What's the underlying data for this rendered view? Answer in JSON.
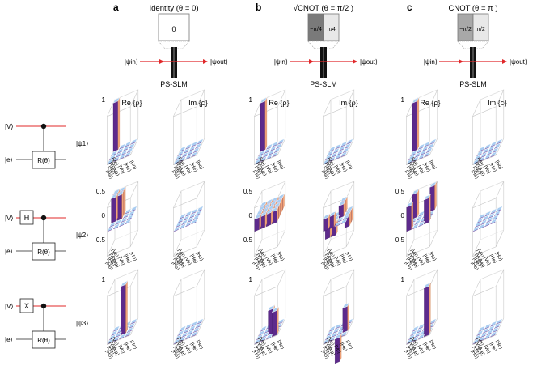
{
  "panels": [
    {
      "letter": "a",
      "title": "Identity (θ = 0)",
      "slm_values": [
        "0"
      ]
    },
    {
      "letter": "b",
      "title": "√CNOT (θ = π/2 )",
      "slm_values": [
        "−π/4",
        "π/4"
      ]
    },
    {
      "letter": "c",
      "title": "CNOT (θ = π )",
      "slm_values": [
        "−π/2",
        "π/2"
      ]
    }
  ],
  "psi_in": "|ψin⟩",
  "psi_out": "|ψout⟩",
  "slm_label": "PS-SLM",
  "plot_titles": {
    "re": "Re {ρ}",
    "im": "Im {ρ}"
  },
  "ticks": {
    "t1": "1",
    "t05": "0.5",
    "t0": "0",
    "tm05": "−0.5"
  },
  "basis": [
    "|Ve⟩",
    "|Vo⟩",
    "|He⟩",
    "|Ho⟩"
  ],
  "circuit": {
    "v_label": "|V⟩",
    "e_label": "|e⟩",
    "gate": "R(θ)",
    "pre_gates": [
      "",
      "H",
      "X"
    ],
    "outputs": [
      "|ψ1⟩",
      "|ψ2⟩",
      "|ψ3⟩"
    ]
  },
  "colors": {
    "top": "#a9cdf1",
    "front": "#5d2a8c",
    "side": "#f2a47a",
    "line": "#e0282a",
    "grid": "#c8c8c8"
  },
  "density_matrices": {
    "a1": {
      "re": [
        [
          1,
          0,
          0,
          0
        ],
        [
          0,
          0,
          0,
          0
        ],
        [
          0,
          0,
          0,
          0
        ],
        [
          0,
          0,
          0,
          0
        ]
      ],
      "im": [
        [
          0,
          0,
          0,
          0
        ],
        [
          0,
          0,
          0,
          0
        ],
        [
          0,
          0,
          0,
          0
        ],
        [
          0,
          0,
          0,
          0
        ]
      ]
    },
    "a2": {
      "re": [
        [
          0.5,
          0.5,
          0,
          0
        ],
        [
          0.5,
          0.5,
          0,
          0
        ],
        [
          0,
          0,
          0,
          0
        ],
        [
          0,
          0,
          0,
          0
        ]
      ],
      "im": [
        [
          0,
          0,
          0,
          0
        ],
        [
          0,
          0,
          0,
          0
        ],
        [
          0,
          0,
          0,
          0
        ],
        [
          0,
          0,
          0,
          0
        ]
      ]
    },
    "a3": {
      "re": [
        [
          0,
          0,
          0,
          0
        ],
        [
          0,
          0,
          0,
          0
        ],
        [
          0,
          0,
          1,
          0
        ],
        [
          0,
          0,
          0,
          0
        ]
      ],
      "im": [
        [
          0,
          0,
          0,
          0
        ],
        [
          0,
          0,
          0,
          0
        ],
        [
          0,
          0,
          0,
          0
        ],
        [
          0,
          0,
          0,
          0
        ]
      ]
    },
    "b1": {
      "re": [
        [
          1,
          0,
          0,
          0
        ],
        [
          0,
          0,
          0,
          0
        ],
        [
          0,
          0,
          0,
          0
        ],
        [
          0,
          0,
          0,
          0
        ]
      ],
      "im": [
        [
          0,
          0,
          0,
          0
        ],
        [
          0,
          0,
          0,
          0
        ],
        [
          0,
          0,
          0,
          0
        ],
        [
          0,
          0,
          0,
          0
        ]
      ]
    },
    "b2": {
      "re": [
        [
          0.25,
          0.25,
          0.25,
          0.25
        ],
        [
          0.25,
          0.25,
          0.25,
          0.25
        ],
        [
          0.25,
          0.25,
          0.25,
          0.25
        ],
        [
          0.25,
          0.25,
          0.25,
          0.25
        ]
      ],
      "im": [
        [
          0,
          0,
          0.25,
          -0.25
        ],
        [
          0,
          0,
          0.25,
          -0.25
        ],
        [
          -0.25,
          -0.25,
          0,
          0
        ],
        [
          0.25,
          0.25,
          0,
          0
        ]
      ]
    },
    "b3": {
      "re": [
        [
          0,
          0,
          0,
          0
        ],
        [
          0,
          0,
          0,
          0
        ],
        [
          0,
          0,
          0.5,
          0
        ],
        [
          0,
          0,
          0,
          0.5
        ]
      ],
      "im": [
        [
          0,
          0,
          0,
          0
        ],
        [
          0,
          0,
          0,
          0
        ],
        [
          0,
          0,
          0,
          0.5
        ],
        [
          0,
          0,
          -0.5,
          0
        ]
      ]
    },
    "c1": {
      "re": [
        [
          1,
          0,
          0,
          0
        ],
        [
          0,
          0,
          0,
          0
        ],
        [
          0,
          0,
          0,
          0
        ],
        [
          0,
          0,
          0,
          0
        ]
      ],
      "im": [
        [
          0,
          0,
          0,
          0
        ],
        [
          0,
          0,
          0,
          0
        ],
        [
          0,
          0,
          0,
          0
        ],
        [
          0,
          0,
          0,
          0
        ]
      ]
    },
    "c2": {
      "re": [
        [
          0.5,
          0,
          0,
          0.5
        ],
        [
          0,
          0,
          0,
          0
        ],
        [
          0,
          0,
          0,
          0
        ],
        [
          0.5,
          0,
          0,
          0.5
        ]
      ],
      "im": [
        [
          0,
          0,
          0,
          0
        ],
        [
          0,
          0,
          0,
          0
        ],
        [
          0,
          0,
          0,
          0
        ],
        [
          0,
          0,
          0,
          0
        ]
      ]
    },
    "c3": {
      "re": [
        [
          0,
          0,
          0,
          0
        ],
        [
          0,
          0,
          0,
          0
        ],
        [
          0,
          0,
          0,
          0
        ],
        [
          0,
          0,
          0,
          1
        ]
      ],
      "im": [
        [
          0,
          0,
          0,
          0
        ],
        [
          0,
          0,
          0,
          0
        ],
        [
          0,
          0,
          0,
          0
        ],
        [
          0,
          0,
          0,
          0
        ]
      ]
    }
  }
}
